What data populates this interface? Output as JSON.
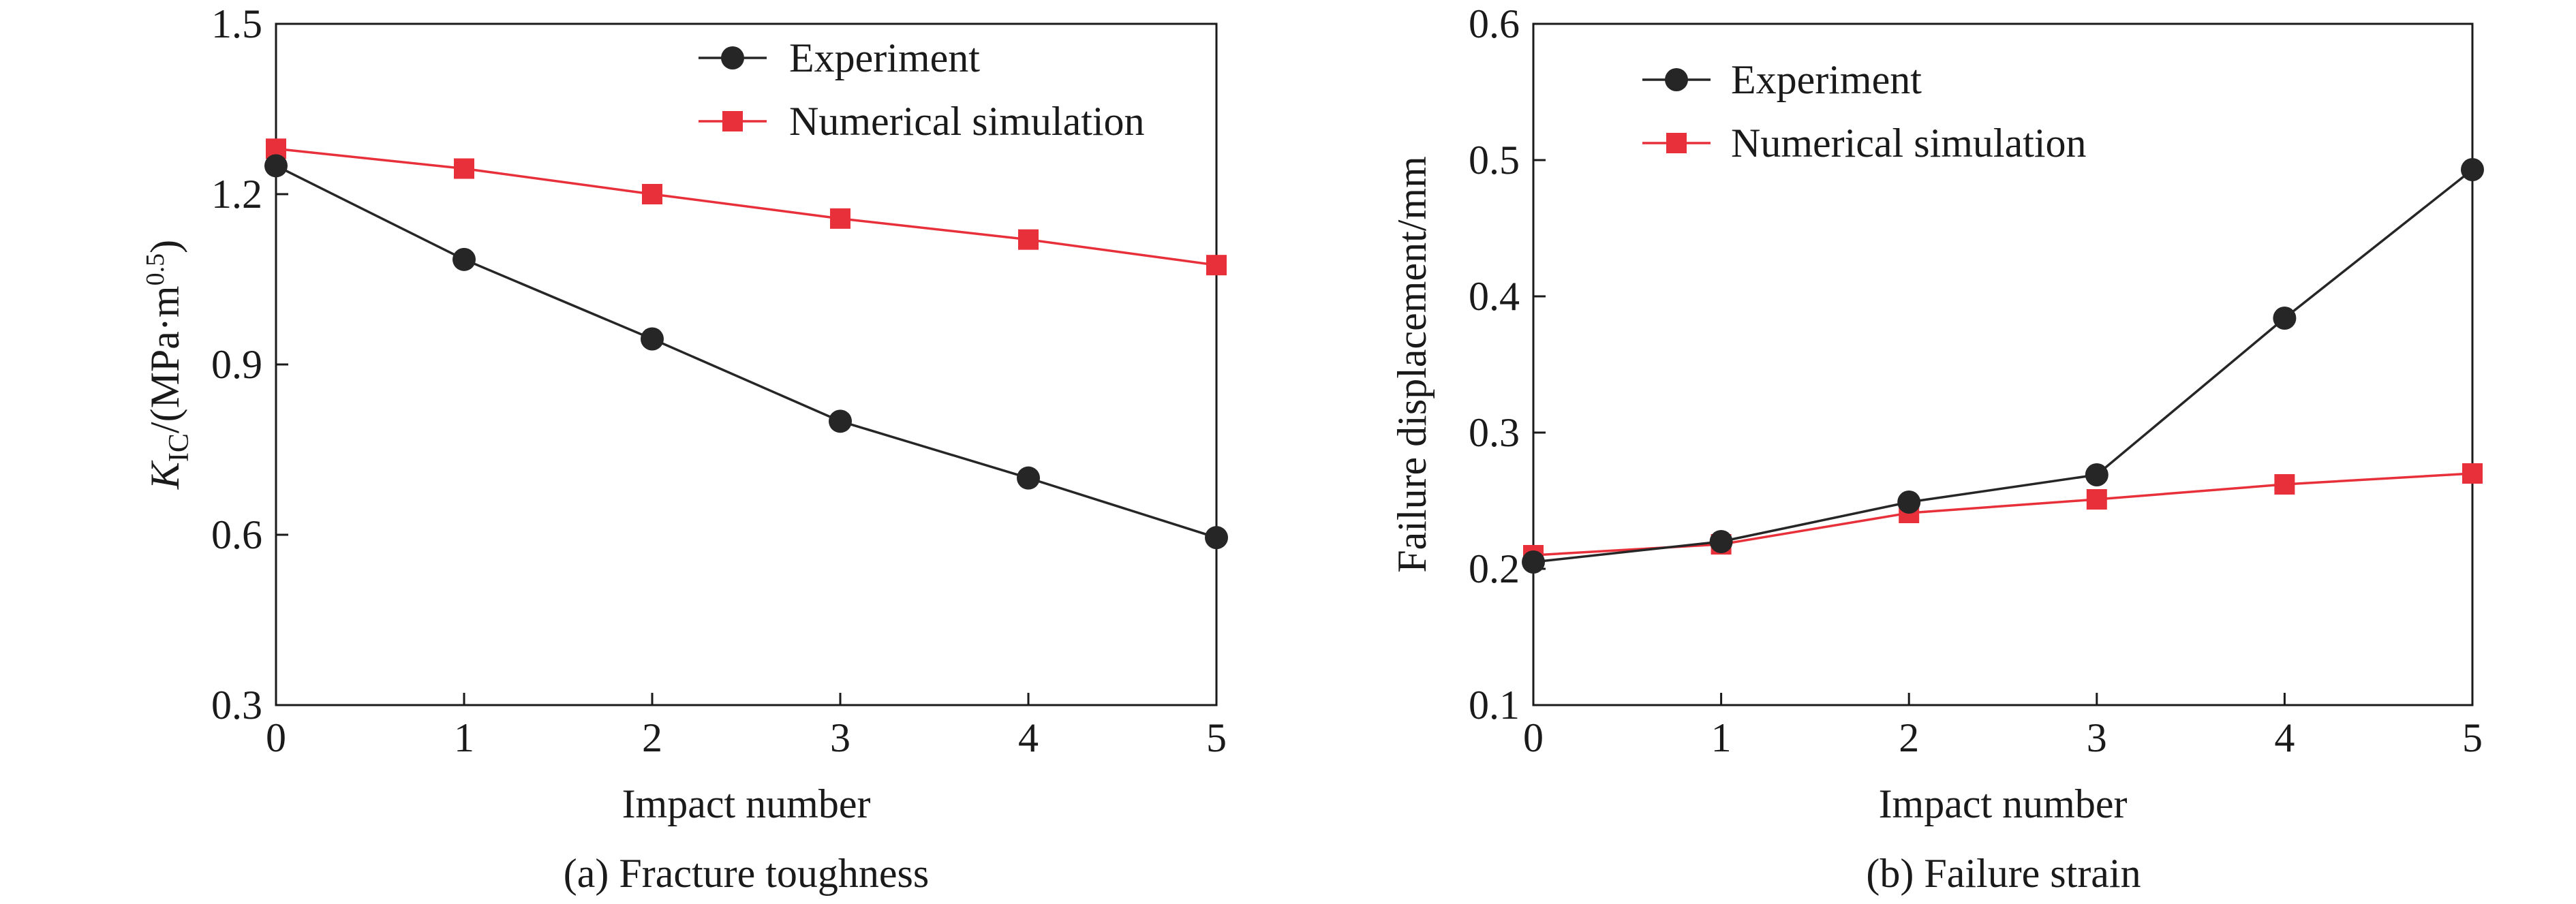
{
  "colors": {
    "experiment": "#262626",
    "simulation": "#e8303a",
    "axis": "#1a1a1a"
  },
  "chart_data": [
    {
      "type": "line",
      "caption": "(a) Fracture toughness",
      "xlabel": "Impact number",
      "ylabel_main": "K",
      "ylabel_sub": "IC",
      "ylabel_rest": "/(MPa·m",
      "ylabel_sup": "0.5",
      "ylabel_close": ")",
      "xlim": [
        0,
        5
      ],
      "ylim": [
        0.3,
        1.5
      ],
      "x_ticks": [
        "0",
        "1",
        "2",
        "3",
        "4",
        "5"
      ],
      "y_ticks": [
        "0.3",
        "0.6",
        "0.9",
        "1.2",
        "1.5"
      ],
      "legend_position": "top-right",
      "x": [
        0,
        1,
        2,
        3,
        4,
        5
      ],
      "series": [
        {
          "name": "Experiment",
          "marker": "circle",
          "values": [
            1.25,
            1.085,
            0.945,
            0.8,
            0.7,
            0.595
          ]
        },
        {
          "name": "Numerical simulation",
          "marker": "square",
          "values": [
            1.28,
            1.245,
            1.2,
            1.157,
            1.12,
            1.075
          ]
        }
      ]
    },
    {
      "type": "line",
      "caption": "(b) Failure strain",
      "xlabel": "Impact number",
      "ylabel": "Failure displacement/mm",
      "xlim": [
        0,
        5
      ],
      "ylim": [
        0.1,
        0.6
      ],
      "x_ticks": [
        "0",
        "1",
        "2",
        "3",
        "4",
        "5"
      ],
      "y_ticks": [
        "0.1",
        "0.2",
        "0.3",
        "0.4",
        "0.5",
        "0.6"
      ],
      "legend_position": "top-left",
      "x": [
        0,
        1,
        2,
        3,
        4,
        5
      ],
      "series": [
        {
          "name": "Experiment",
          "marker": "circle",
          "values": [
            0.205,
            0.22,
            0.249,
            0.269,
            0.384,
            0.493
          ]
        },
        {
          "name": "Numerical simulation",
          "marker": "square",
          "values": [
            0.21,
            0.218,
            0.241,
            0.251,
            0.262,
            0.27
          ]
        }
      ]
    }
  ]
}
